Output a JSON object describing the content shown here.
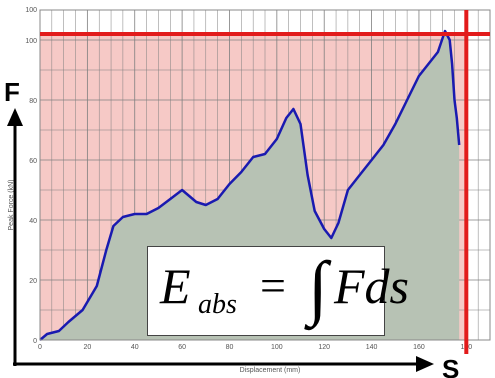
{
  "chart_data": {
    "type": "area",
    "title": "",
    "xlabel": "Displacement (mm)",
    "ylabel": "Peak Force (kN)",
    "xlim": [
      0,
      190
    ],
    "ylim": [
      0,
      110
    ],
    "x_ticks": [
      "0",
      "20",
      "40",
      "60",
      "80",
      "100",
      "120",
      "140",
      "160",
      "180"
    ],
    "y_ticks": [
      "0",
      "20",
      "40",
      "60",
      "80",
      "100"
    ],
    "y_top_tick": "100",
    "grid": true,
    "series": [
      {
        "name": "",
        "color": "#1a1ab0",
        "fill": "#b7c2b4",
        "x": [
          0,
          3,
          8,
          12,
          18,
          24,
          28,
          31,
          35,
          40,
          45,
          50,
          55,
          60,
          63,
          66,
          70,
          75,
          80,
          85,
          90,
          95,
          100,
          104,
          107,
          110,
          113,
          116,
          120,
          123,
          126,
          130,
          135,
          140,
          145,
          150,
          155,
          160,
          164,
          168,
          171,
          173,
          174,
          175,
          176,
          177
        ],
        "y": [
          0,
          2,
          3,
          6,
          10,
          18,
          30,
          38,
          41,
          42,
          42,
          44,
          47,
          50,
          48,
          46,
          45,
          47,
          52,
          56,
          61,
          62,
          67,
          74,
          77,
          72,
          55,
          43,
          37,
          34,
          39,
          50,
          55,
          60,
          65,
          72,
          80,
          88,
          92,
          96,
          103,
          100,
          92,
          80,
          74,
          65
        ]
      }
    ],
    "fill_region_color": "#f6c9c6",
    "reference_lines": [
      {
        "orientation": "horizontal",
        "y": 102,
        "color": "#e21b1b"
      },
      {
        "orientation": "vertical",
        "x": 180,
        "color": "#e21b1b"
      }
    ],
    "axis_letters": {
      "y": "F",
      "x": "S"
    },
    "annotation": {
      "main": "E",
      "sub": "abs",
      "equals": "=",
      "integral": "∫",
      "tail": "Fds"
    }
  }
}
